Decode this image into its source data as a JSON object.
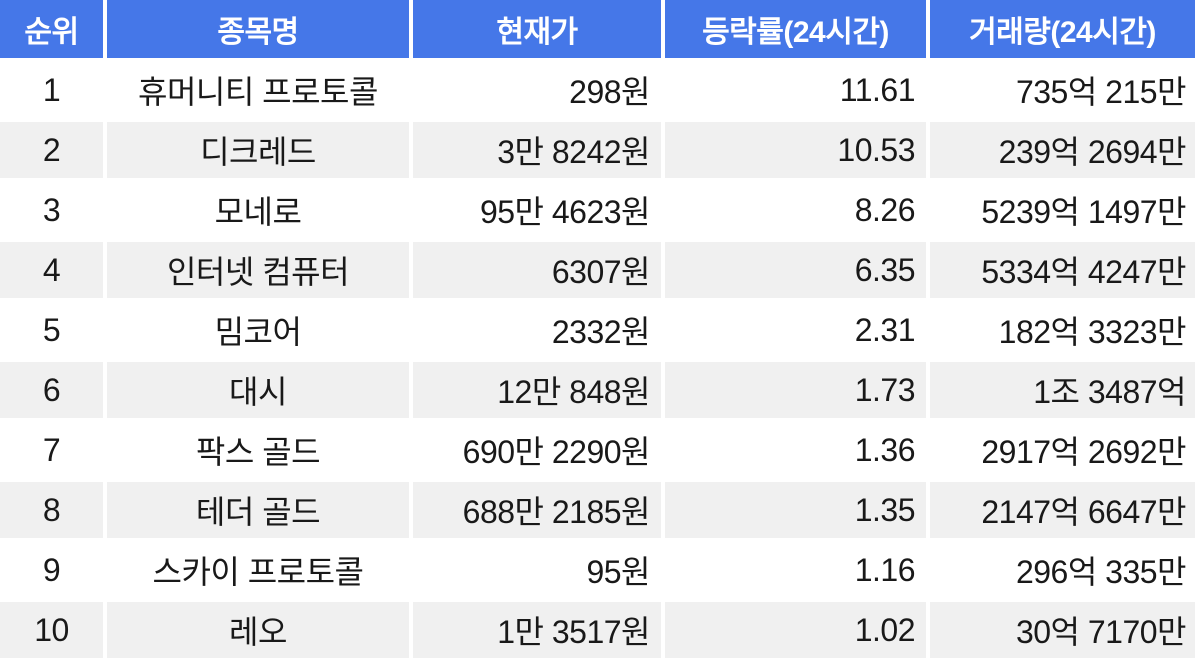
{
  "colors": {
    "header_bg": "#4577e8",
    "header_text": "#ffffff",
    "stripe_bg": "#f0f0f0",
    "body_text": "#191919"
  },
  "table": {
    "headers": [
      "순위",
      "종목명",
      "현재가",
      "등락률(24시간)",
      "거래량(24시간)"
    ],
    "rows": [
      {
        "rank": "1",
        "name": "휴머니티 프로토콜",
        "price": "298원",
        "change": "11.61",
        "volume": "735억 215만"
      },
      {
        "rank": "2",
        "name": "디크레드",
        "price": "3만 8242원",
        "change": "10.53",
        "volume": "239억 2694만"
      },
      {
        "rank": "3",
        "name": "모네로",
        "price": "95만 4623원",
        "change": "8.26",
        "volume": "5239억 1497만"
      },
      {
        "rank": "4",
        "name": "인터넷 컴퓨터",
        "price": "6307원",
        "change": "6.35",
        "volume": "5334억 4247만"
      },
      {
        "rank": "5",
        "name": "밈코어",
        "price": "2332원",
        "change": "2.31",
        "volume": "182억 3323만"
      },
      {
        "rank": "6",
        "name": "대시",
        "price": "12만 848원",
        "change": "1.73",
        "volume": "1조 3487억"
      },
      {
        "rank": "7",
        "name": "팍스 골드",
        "price": "690만 2290원",
        "change": "1.36",
        "volume": "2917억 2692만"
      },
      {
        "rank": "8",
        "name": "테더 골드",
        "price": "688만 2185원",
        "change": "1.35",
        "volume": "2147억 6647만"
      },
      {
        "rank": "9",
        "name": "스카이 프로토콜",
        "price": "95원",
        "change": "1.16",
        "volume": "296억 335만"
      },
      {
        "rank": "10",
        "name": "레오",
        "price": "1만 3517원",
        "change": "1.02",
        "volume": "30억 7170만"
      }
    ]
  }
}
